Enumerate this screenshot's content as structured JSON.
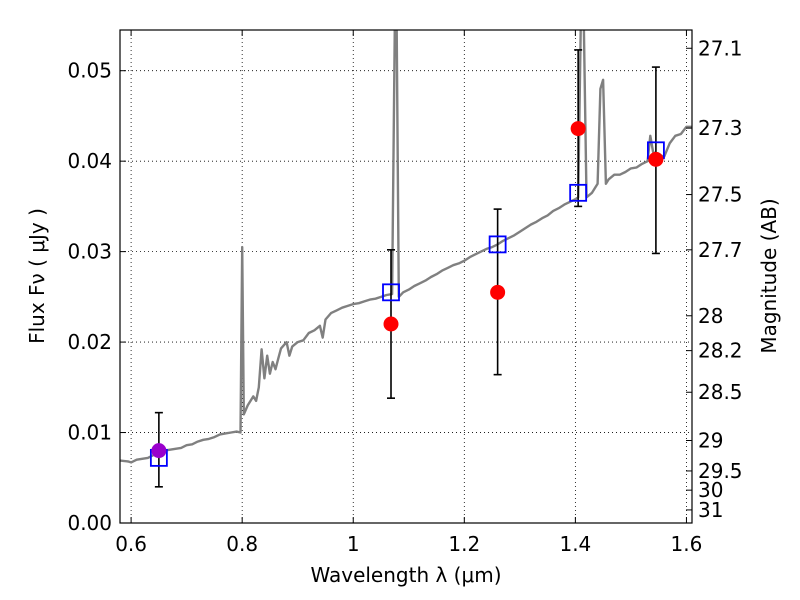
{
  "chart_data": {
    "type": "scatter",
    "xlabel": "Wavelength  λ (μm)",
    "ylabel": "Flux  Fν  ( μJy )",
    "y2label": "Magnitude (AB)",
    "xlim": [
      0.58,
      1.61
    ],
    "ylim": [
      0.0,
      0.0545
    ],
    "x_ticks": [
      {
        "v": 0.6,
        "label": "0.6"
      },
      {
        "v": 0.8,
        "label": "0.8"
      },
      {
        "v": 1.0,
        "label": "1"
      },
      {
        "v": 1.2,
        "label": "1.2"
      },
      {
        "v": 1.4,
        "label": "1.4"
      },
      {
        "v": 1.6,
        "label": "1.6"
      }
    ],
    "y_ticks": [
      {
        "v": 0.0,
        "label": "0.00"
      },
      {
        "v": 0.01,
        "label": "0.01"
      },
      {
        "v": 0.02,
        "label": "0.02"
      },
      {
        "v": 0.03,
        "label": "0.03"
      },
      {
        "v": 0.04,
        "label": "0.04"
      },
      {
        "v": 0.05,
        "label": "0.05"
      }
    ],
    "mag_ticks": [
      "27.1",
      "27.3",
      "27.5",
      "27.7",
      "28",
      "28.2",
      "28.5",
      "29",
      "29.5",
      "30",
      "31"
    ],
    "grid": true,
    "colors": {
      "spectrum": "#808080",
      "model_points": "#0000ff",
      "observed": "#ff0000",
      "highlight": "#9900cc",
      "errorbar": "#000000"
    },
    "model_photometry": [
      {
        "x": 0.65,
        "y": 0.0072
      },
      {
        "x": 1.068,
        "y": 0.0255
      },
      {
        "x": 1.26,
        "y": 0.0308
      },
      {
        "x": 1.405,
        "y": 0.0365
      },
      {
        "x": 1.545,
        "y": 0.0412
      }
    ],
    "observed_photometry": [
      {
        "x": 0.65,
        "y": 0.008,
        "err_low": 0.004,
        "err_high": 0.0122,
        "highlight": true
      },
      {
        "x": 1.068,
        "y": 0.022,
        "err_low": 0.0138,
        "err_high": 0.0302
      },
      {
        "x": 1.26,
        "y": 0.0255,
        "err_low": 0.0164,
        "err_high": 0.0347
      },
      {
        "x": 1.405,
        "y": 0.0436,
        "err_low": 0.035,
        "err_high": 0.0523
      },
      {
        "x": 1.545,
        "y": 0.0402,
        "err_low": 0.0298,
        "err_high": 0.0504
      }
    ],
    "spectrum": [
      [
        0.58,
        0.0069
      ],
      [
        0.595,
        0.0068
      ],
      [
        0.6,
        0.0067
      ],
      [
        0.61,
        0.007
      ],
      [
        0.62,
        0.0071
      ],
      [
        0.63,
        0.0072
      ],
      [
        0.64,
        0.0075
      ],
      [
        0.65,
        0.0078
      ],
      [
        0.66,
        0.008
      ],
      [
        0.67,
        0.0081
      ],
      [
        0.68,
        0.0082
      ],
      [
        0.69,
        0.0083
      ],
      [
        0.7,
        0.0086
      ],
      [
        0.71,
        0.0087
      ],
      [
        0.72,
        0.009
      ],
      [
        0.73,
        0.0092
      ],
      [
        0.74,
        0.0093
      ],
      [
        0.75,
        0.0095
      ],
      [
        0.76,
        0.0098
      ],
      [
        0.77,
        0.0099
      ],
      [
        0.78,
        0.01
      ],
      [
        0.79,
        0.0101
      ],
      [
        0.797,
        0.01
      ],
      [
        0.8,
        0.0305
      ],
      [
        0.803,
        0.012
      ],
      [
        0.81,
        0.013
      ],
      [
        0.82,
        0.014
      ],
      [
        0.825,
        0.0135
      ],
      [
        0.83,
        0.015
      ],
      [
        0.835,
        0.0192
      ],
      [
        0.84,
        0.016
      ],
      [
        0.845,
        0.0185
      ],
      [
        0.85,
        0.0165
      ],
      [
        0.855,
        0.0178
      ],
      [
        0.86,
        0.017
      ],
      [
        0.865,
        0.0182
      ],
      [
        0.87,
        0.0193
      ],
      [
        0.88,
        0.02
      ],
      [
        0.885,
        0.0185
      ],
      [
        0.89,
        0.0195
      ],
      [
        0.9,
        0.02
      ],
      [
        0.91,
        0.0202
      ],
      [
        0.92,
        0.021
      ],
      [
        0.93,
        0.0213
      ],
      [
        0.94,
        0.0218
      ],
      [
        0.945,
        0.0205
      ],
      [
        0.95,
        0.0225
      ],
      [
        0.96,
        0.0232
      ],
      [
        0.97,
        0.0235
      ],
      [
        0.98,
        0.0238
      ],
      [
        0.99,
        0.024
      ],
      [
        1.0,
        0.0242
      ],
      [
        1.01,
        0.0243
      ],
      [
        1.02,
        0.0245
      ],
      [
        1.03,
        0.0247
      ],
      [
        1.04,
        0.0248
      ],
      [
        1.05,
        0.025
      ],
      [
        1.06,
        0.0252
      ],
      [
        1.07,
        0.0253
      ],
      [
        1.075,
        0.056
      ],
      [
        1.078,
        0.056
      ],
      [
        1.082,
        0.025
      ],
      [
        1.09,
        0.0255
      ],
      [
        1.1,
        0.0258
      ],
      [
        1.11,
        0.0262
      ],
      [
        1.12,
        0.0265
      ],
      [
        1.13,
        0.0268
      ],
      [
        1.14,
        0.0272
      ],
      [
        1.15,
        0.0275
      ],
      [
        1.16,
        0.0279
      ],
      [
        1.17,
        0.0282
      ],
      [
        1.18,
        0.0285
      ],
      [
        1.19,
        0.0287
      ],
      [
        1.2,
        0.029
      ],
      [
        1.21,
        0.0294
      ],
      [
        1.22,
        0.0297
      ],
      [
        1.23,
        0.03
      ],
      [
        1.24,
        0.0303
      ],
      [
        1.25,
        0.0305
      ],
      [
        1.26,
        0.0308
      ],
      [
        1.27,
        0.0312
      ],
      [
        1.28,
        0.0315
      ],
      [
        1.29,
        0.0318
      ],
      [
        1.3,
        0.0322
      ],
      [
        1.31,
        0.0326
      ],
      [
        1.32,
        0.033
      ],
      [
        1.33,
        0.0333
      ],
      [
        1.34,
        0.0337
      ],
      [
        1.35,
        0.034
      ],
      [
        1.36,
        0.0345
      ],
      [
        1.37,
        0.0348
      ],
      [
        1.38,
        0.0352
      ],
      [
        1.39,
        0.0355
      ],
      [
        1.4,
        0.0358
      ],
      [
        1.405,
        0.036
      ],
      [
        1.41,
        0.056
      ],
      [
        1.415,
        0.056
      ],
      [
        1.42,
        0.036
      ],
      [
        1.43,
        0.0365
      ],
      [
        1.435,
        0.037
      ],
      [
        1.44,
        0.0375
      ],
      [
        1.445,
        0.048
      ],
      [
        1.45,
        0.049
      ],
      [
        1.455,
        0.0375
      ],
      [
        1.46,
        0.038
      ],
      [
        1.47,
        0.0385
      ],
      [
        1.48,
        0.0385
      ],
      [
        1.49,
        0.0388
      ],
      [
        1.5,
        0.0392
      ],
      [
        1.51,
        0.0393
      ],
      [
        1.52,
        0.0397
      ],
      [
        1.53,
        0.04
      ],
      [
        1.535,
        0.0428
      ],
      [
        1.54,
        0.041
      ],
      [
        1.55,
        0.0407
      ],
      [
        1.56,
        0.0405
      ],
      [
        1.57,
        0.042
      ],
      [
        1.58,
        0.0428
      ],
      [
        1.59,
        0.043
      ],
      [
        1.6,
        0.0438
      ],
      [
        1.61,
        0.0438
      ]
    ]
  }
}
